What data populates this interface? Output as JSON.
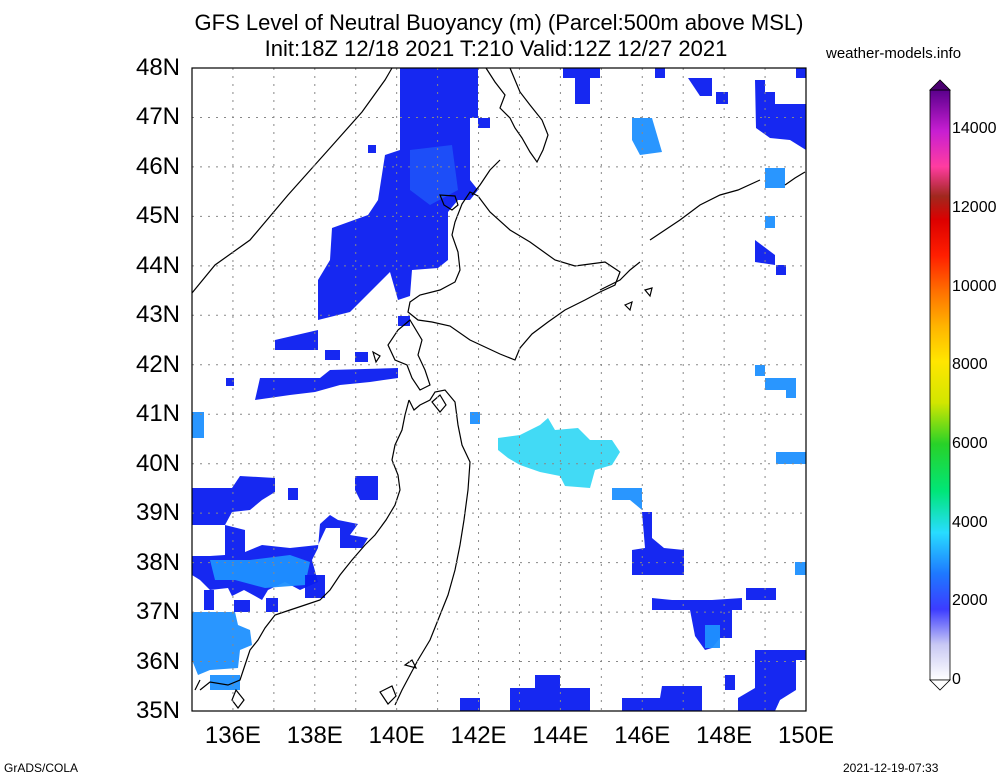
{
  "title": {
    "line1": "GFS Level of Neutral Buoyancy (m) (Parcel:500m above MSL)",
    "line2": "Init:18Z 12/18 2021 T:210 Valid:12Z 12/27 2021"
  },
  "brand": "weather-models.info",
  "footer": {
    "left": "GrADS/COLA",
    "right": "2021-12-19-07:33"
  },
  "map": {
    "lat_labels": [
      "48N",
      "47N",
      "46N",
      "45N",
      "44N",
      "43N",
      "42N",
      "41N",
      "40N",
      "39N",
      "38N",
      "37N",
      "36N",
      "35N"
    ],
    "lon_labels": [
      "136E",
      "138E",
      "140E",
      "142E",
      "144E",
      "146E",
      "148E",
      "150E"
    ],
    "lat_range": [
      35,
      48
    ],
    "lon_range": [
      135,
      150
    ],
    "grid": "dotted"
  },
  "colorbar": {
    "labels": [
      "14000",
      "12000",
      "10000",
      "8000",
      "6000",
      "4000",
      "2000",
      "0"
    ],
    "range": [
      0,
      15000
    ]
  },
  "colors": {
    "deep_blue": "#0a1cf0",
    "mid_blue": "#1e50f8",
    "sky_blue": "#1e90ff",
    "light_cyan": "#38d8f4",
    "coast": "#000000"
  }
}
